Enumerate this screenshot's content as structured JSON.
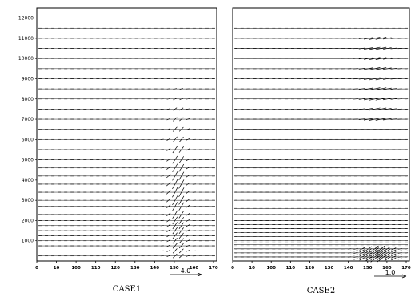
{
  "chart_data": [
    {
      "type": "vector_field",
      "title": "",
      "caption": "CASE1",
      "xlabel": "",
      "ylabel": "",
      "xlim": [
        0,
        175
      ],
      "ylim": [
        0,
        12500
      ],
      "x_ticks": [
        "0",
        "10",
        "100",
        "110",
        "120",
        "130",
        "140",
        "150",
        "160",
        "170"
      ],
      "y_ticks": [
        1000,
        2000,
        3000,
        4000,
        5000,
        6000,
        7000,
        8000,
        9000,
        10000,
        11000,
        12000
      ],
      "reference_vector_label": "4.0",
      "levels_m": [
        250,
        500,
        750,
        1000,
        1250,
        1500,
        1750,
        2000,
        2300,
        2700,
        3000,
        3400,
        3800,
        4200,
        4600,
        5000,
        5500,
        6000,
        6500,
        7000,
        7500,
        8000,
        8500,
        9000,
        9500,
        10000,
        10500,
        11000,
        11500
      ],
      "feature": {
        "description": "vertical motion column",
        "x_center": 137,
        "x_width": 12,
        "max_at_m": 3500
      }
    },
    {
      "type": "vector_field",
      "title": "",
      "caption": "CASE2",
      "xlabel": "",
      "ylabel": "",
      "xlim": [
        0,
        175
      ],
      "ylim": [
        0,
        12500
      ],
      "x_ticks": [
        "0",
        "10",
        "100",
        "110",
        "120",
        "130",
        "140",
        "150",
        "160",
        "170"
      ],
      "reference_vector_label": "1.0",
      "levels_m": [
        100,
        200,
        300,
        400,
        500,
        600,
        700,
        800,
        900,
        1000,
        1200,
        1400,
        1600,
        1800,
        2000,
        2300,
        2600,
        3000,
        3400,
        3800,
        4200,
        4600,
        5000,
        5500,
        6000,
        6500,
        7000,
        7500,
        8000,
        8500,
        9000,
        9500,
        10000,
        10500,
        11000,
        11500
      ],
      "feature": {
        "description": "upper-level and surface outflow",
        "x_center": 143,
        "upper_levels_m": [
          7000,
          11000
        ],
        "surface_max_m": 600
      }
    }
  ]
}
